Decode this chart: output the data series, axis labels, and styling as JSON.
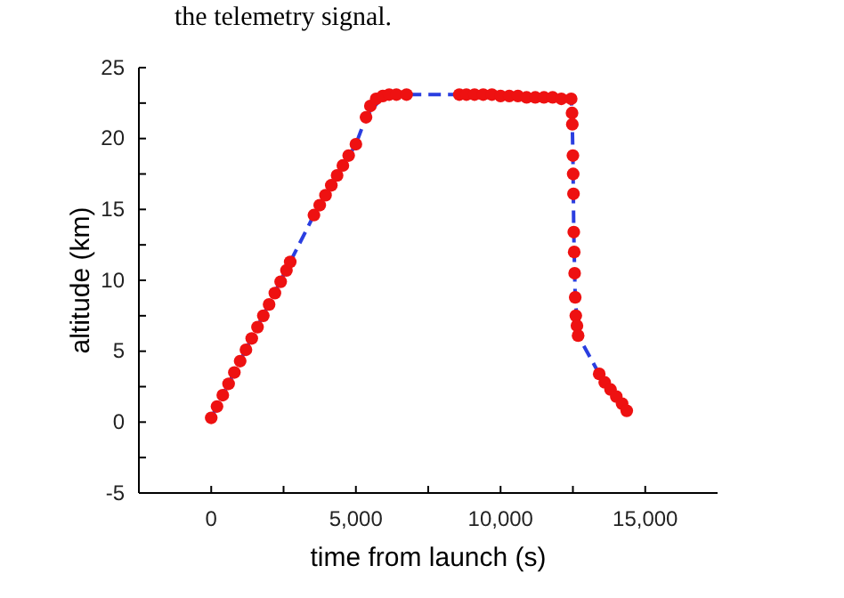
{
  "chart_data": {
    "type": "line",
    "annotations": [
      "the telemetry signal."
    ],
    "xlabel": "time from launch (s)",
    "ylabel": "altitude (km)",
    "xlim": [
      -2500,
      17500
    ],
    "ylim": [
      -5,
      25
    ],
    "xticks": [
      {
        "value": -2500,
        "label": null
      },
      0,
      {
        "value": 2500,
        "label": null
      },
      {
        "value": 5000,
        "label": "5,000"
      },
      {
        "value": 7500,
        "label": null
      },
      {
        "value": 10000,
        "label": "10,000"
      },
      {
        "value": 12500,
        "label": null
      },
      {
        "value": 15000,
        "label": "15,000"
      }
    ],
    "yticks": [
      -5,
      {
        "value": -2.5,
        "label": null
      },
      0,
      {
        "value": 2.5,
        "label": null
      },
      5,
      {
        "value": 7.5,
        "label": null
      },
      10,
      {
        "value": 12.5,
        "label": null
      },
      15,
      {
        "value": 17.5,
        "label": null
      },
      20,
      {
        "value": 22.5,
        "label": null
      },
      25
    ],
    "grid": false,
    "series": [
      {
        "color": "#2a3ee0",
        "line_style": "dashed",
        "marker": "none",
        "x": [
          0,
          2730,
          3550,
          5000,
          5350,
          5930,
          6750,
          8575,
          12440,
          12470,
          12500,
          12530,
          12560,
          12580,
          12680,
          13410,
          14360
        ],
        "values": [
          0.3,
          11.3,
          14.6,
          19.6,
          21.5,
          23.0,
          23.1,
          23.1,
          22.8,
          21.8,
          18.8,
          13.4,
          10.5,
          8.8,
          6.1,
          3.4,
          0.8
        ]
      },
      {
        "type": "scatter",
        "color": "#ee1111",
        "marker": "circle",
        "x": [
          0,
          200,
          400,
          600,
          800,
          1000,
          1200,
          1400,
          1600,
          1800,
          2000,
          2200,
          2400,
          2600,
          2730,
          3550,
          3750,
          3950,
          4150,
          4350,
          4550,
          4750,
          5000,
          5350,
          5500,
          5700,
          5930,
          6150,
          6400,
          6750,
          8575,
          8820,
          9100,
          9400,
          9700,
          10000,
          10300,
          10600,
          10900,
          11200,
          11500,
          11800,
          12100,
          12440,
          12470,
          12480,
          12500,
          12510,
          12520,
          12530,
          12545,
          12560,
          12580,
          12600,
          12640,
          12680,
          13410,
          13600,
          13800,
          14000,
          14200,
          14360
        ],
        "values": [
          0.3,
          1.1,
          1.9,
          2.7,
          3.5,
          4.3,
          5.1,
          5.9,
          6.7,
          7.5,
          8.3,
          9.1,
          9.9,
          10.7,
          11.3,
          14.6,
          15.3,
          16.0,
          16.7,
          17.4,
          18.1,
          18.8,
          19.6,
          21.5,
          22.3,
          22.8,
          23.0,
          23.1,
          23.1,
          23.1,
          23.1,
          23.1,
          23.1,
          23.1,
          23.1,
          23.0,
          23.0,
          23.0,
          22.9,
          22.9,
          22.9,
          22.9,
          22.8,
          22.8,
          21.8,
          21.0,
          18.8,
          17.5,
          16.1,
          13.4,
          12.0,
          10.5,
          8.8,
          7.5,
          6.8,
          6.1,
          3.4,
          2.8,
          2.3,
          1.8,
          1.3,
          0.8
        ]
      }
    ]
  }
}
